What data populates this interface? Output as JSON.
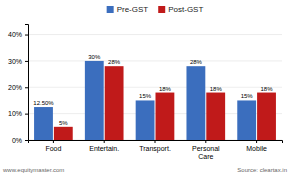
{
  "chart_data": {
    "type": "bar",
    "categories": [
      "Food",
      "Entertain.",
      "Transport.",
      "Personal\nCare",
      "Mobile"
    ],
    "series": [
      {
        "name": "Pre-GST",
        "color": "#3B6EBE",
        "values": [
          12.5,
          30,
          15,
          28,
          15
        ],
        "value_labels": [
          "12.50%",
          "30%",
          "15%",
          "28%",
          "15%"
        ]
      },
      {
        "name": "Post-GST",
        "color": "#C01A1A",
        "values": [
          5,
          28,
          18,
          18,
          18
        ],
        "value_labels": [
          "5%",
          "28%",
          "18%",
          "18%",
          "18%"
        ]
      }
    ],
    "ylim": [
      0,
      44
    ],
    "yticks": [
      {
        "value": 0,
        "label": "0%"
      },
      {
        "value": 10,
        "label": "10%"
      },
      {
        "value": 20,
        "label": "20%"
      },
      {
        "value": 30,
        "label": "30%"
      },
      {
        "value": 40,
        "label": "40%"
      }
    ],
    "grid": true,
    "legend": "top",
    "data_labels": true,
    "annotations": [
      "www.equitymaster.com",
      "Source: cleartax.in"
    ]
  }
}
